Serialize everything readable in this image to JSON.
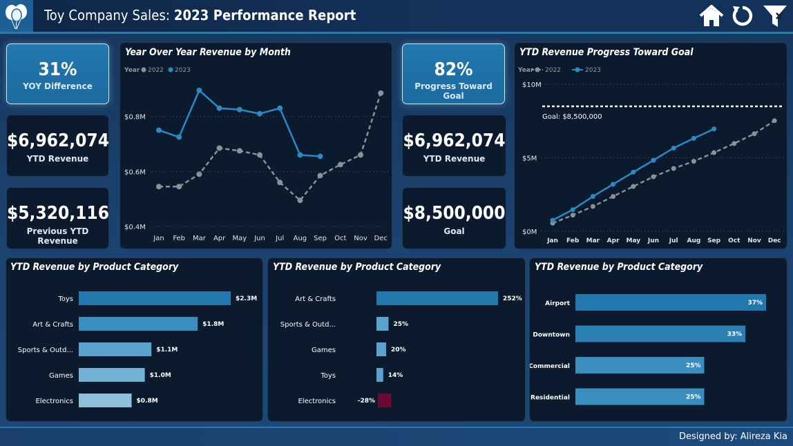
{
  "header": {
    "title_prefix": "Toy Company Sales: ",
    "title_bold": "2023 Performance Report",
    "icons": [
      "balloons-logo-icon",
      "home-icon",
      "reset-icon",
      "filter-icon"
    ]
  },
  "kpis": {
    "yoy": {
      "value": "31%",
      "label": "YOY Difference"
    },
    "ytd": {
      "value": "$6,962,074",
      "label": "YTD Revenue"
    },
    "prev": {
      "value": "$5,320,116",
      "label": "Previous YTD Revenue"
    },
    "progress": {
      "value": "82%",
      "label": "Progress Toward Goal"
    },
    "ytd2": {
      "value": "$6,962,074",
      "label": "YTD Revenue"
    },
    "goal": {
      "value": "$8,500,000",
      "label": "Goal"
    }
  },
  "colors": {
    "accent": "#2a8ac4",
    "series2022": "#8d9096",
    "negative": "#6b0a33"
  },
  "chart_data": [
    {
      "type": "line",
      "title": "Year Over Year Revenue by Month",
      "legend_title": "Year",
      "legend_position": "top-left",
      "x": [
        "Jan",
        "Feb",
        "Mar",
        "Apr",
        "May",
        "Jun",
        "Jul",
        "Aug",
        "Sep",
        "Oct",
        "Nov",
        "Dec"
      ],
      "series": [
        {
          "name": "2022",
          "style": "dashed",
          "values": [
            0.545,
            0.545,
            0.59,
            0.685,
            0.675,
            0.66,
            0.56,
            0.495,
            0.585,
            0.625,
            0.66,
            0.885
          ]
        },
        {
          "name": "2023",
          "style": "solid",
          "values": [
            0.75,
            0.725,
            0.895,
            0.83,
            0.825,
            0.81,
            0.83,
            0.66,
            0.655,
            null,
            null,
            null
          ]
        }
      ],
      "yticks": [
        "$0.4M",
        "$0.6M",
        "$0.8M"
      ],
      "ylim": [
        0.39,
        0.99
      ]
    },
    {
      "type": "line",
      "title": "YTD Revenue Progress Toward Goal",
      "legend_title": "Year",
      "legend_position": "top-left",
      "x": [
        "Jan",
        "Feb",
        "Mar",
        "Apr",
        "May",
        "Jun",
        "Jul",
        "Aug",
        "Sep",
        "Oct",
        "Nov",
        "Dec"
      ],
      "series": [
        {
          "name": "2022",
          "style": "dashed",
          "values": [
            0.55,
            1.1,
            1.69,
            2.37,
            3.05,
            3.71,
            4.27,
            4.76,
            5.35,
            5.97,
            6.63,
            7.52
          ]
        },
        {
          "name": "2023",
          "style": "solid",
          "values": [
            0.75,
            1.47,
            2.37,
            3.2,
            4.02,
            4.83,
            5.66,
            6.32,
            6.96,
            null,
            null,
            null
          ]
        }
      ],
      "goal": 8.5,
      "goal_label": "Goal: $8,500,000",
      "yticks": [
        "$0M",
        "$5M",
        "$10M"
      ],
      "ylim": [
        0,
        10
      ]
    },
    {
      "type": "bar",
      "title": "YTD Revenue by Product Category",
      "categories": [
        "Toys",
        "Art & Crafts",
        "Sports & Outd...",
        "Games",
        "Electronics"
      ],
      "values": [
        2.3,
        1.8,
        1.1,
        1.0,
        0.8
      ],
      "labels": [
        "$2.3M",
        "$1.8M",
        "$1.1M",
        "$1.0M",
        "$0.8M"
      ]
    },
    {
      "type": "bar",
      "title": "YTD Revenue by Product Category",
      "categories": [
        "Art & Crafts",
        "Sports & Outd...",
        "Games",
        "Toys",
        "Electronics"
      ],
      "values": [
        252,
        25,
        20,
        14,
        -28
      ],
      "labels": [
        "252%",
        "25%",
        "20%",
        "14%",
        "-28%"
      ]
    },
    {
      "type": "bar",
      "title": "YTD Revenue by Product Category",
      "categories": [
        "Airport",
        "Downtown",
        "Commercial",
        "Residential"
      ],
      "values": [
        37,
        33,
        25,
        25
      ],
      "labels": [
        "37%",
        "33%",
        "25%",
        "25%"
      ]
    }
  ],
  "footer": {
    "credit": "Designed by: Alireza Kia"
  }
}
